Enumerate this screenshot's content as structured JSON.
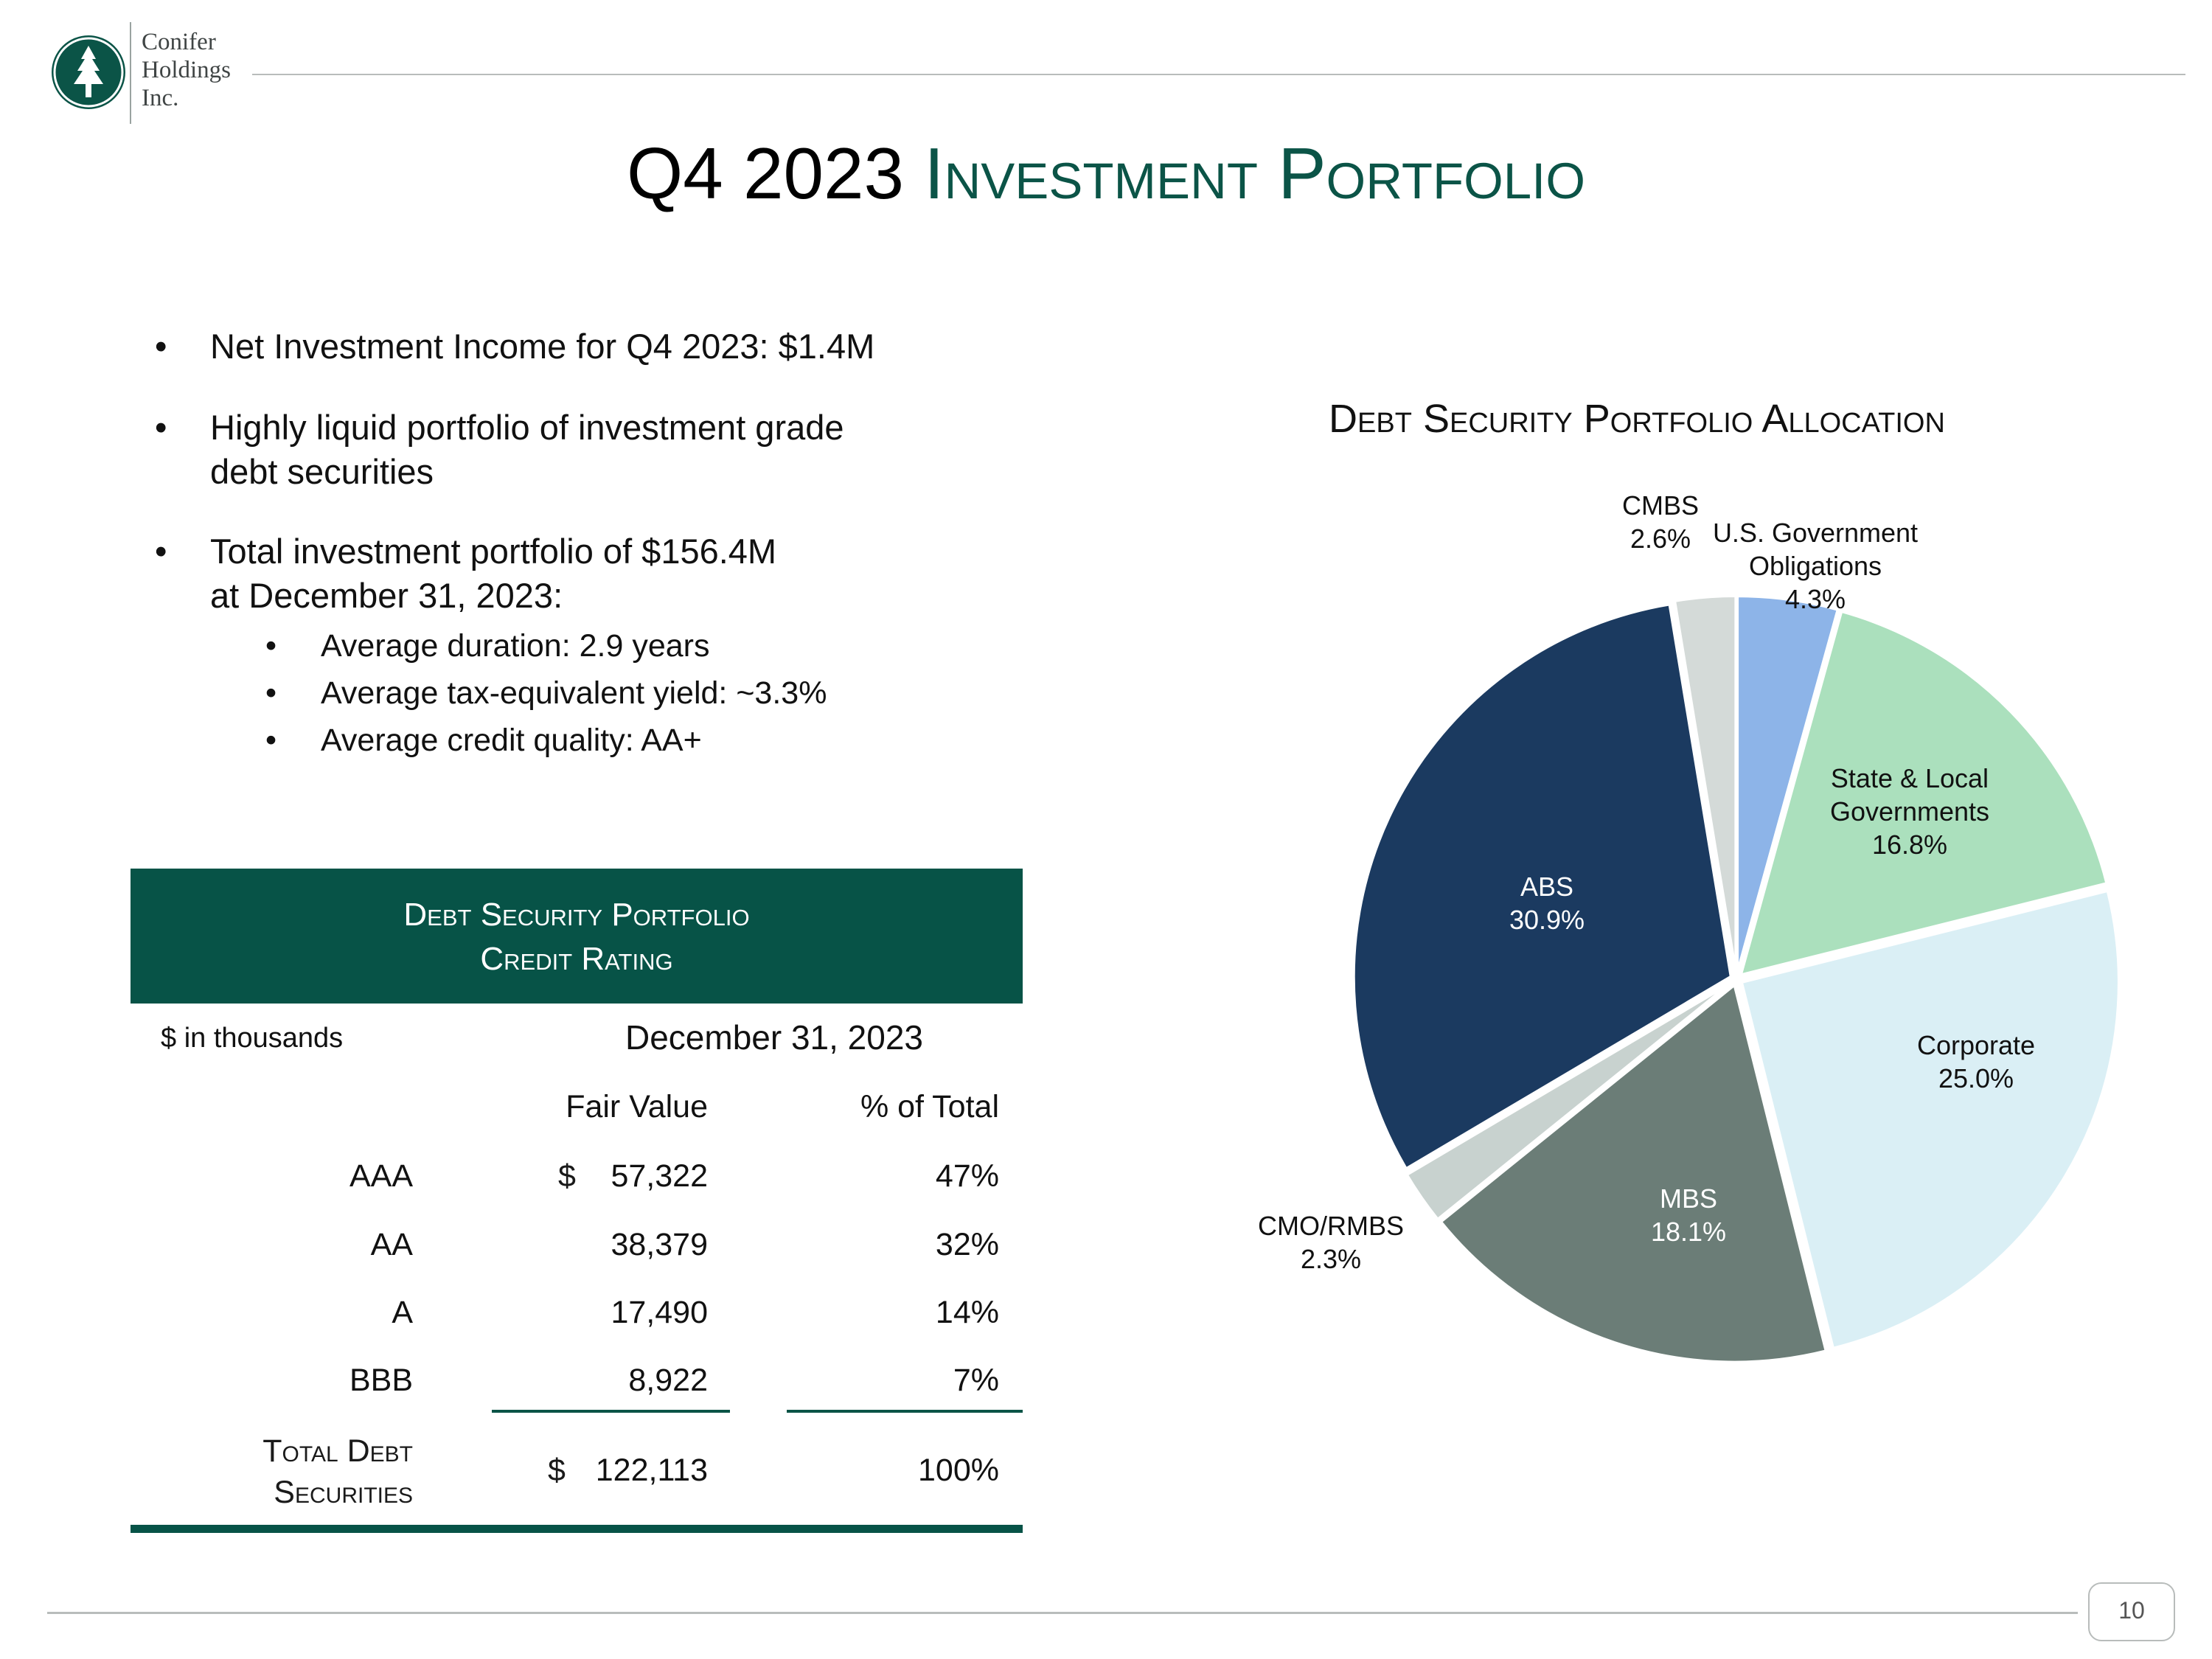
{
  "company": {
    "line1": "Conifer",
    "line2": "Holdings",
    "line3": "Inc."
  },
  "title": {
    "part1": "Q4 2023",
    "part2": "Investment Portfolio"
  },
  "bullets": [
    "Net Investment Income for Q4 2023: $1.4M",
    "Highly liquid portfolio of  investment grade",
    "debt securities",
    "Total investment portfolio of $156.4M",
    "at December 31, 2023:"
  ],
  "sub_bullets": [
    "Average duration: 2.9 years",
    "Average tax-equivalent yield: ~3.3%",
    "Average credit quality: AA+"
  ],
  "table": {
    "header_line1": "Debt Security Portfolio",
    "header_line2": "Credit Rating",
    "units": "$ in thousands",
    "date": "December 31, 2023",
    "col_fair_value": "Fair Value",
    "col_pct": "% of Total",
    "currency": "$",
    "rows": [
      {
        "rating": "AAA",
        "fair_value": "57,322",
        "pct": "47%"
      },
      {
        "rating": "AA",
        "fair_value": "38,379",
        "pct": "32%"
      },
      {
        "rating": "A",
        "fair_value": "17,490",
        "pct": "14%"
      },
      {
        "rating": "BBB",
        "fair_value": "8,922",
        "pct": "7%"
      }
    ],
    "total_label_line1": "Total Debt",
    "total_label_line2": "Securities",
    "total_value": "122,113",
    "total_pct": "100%"
  },
  "chart_data": {
    "type": "pie",
    "title": "Debt Security Portfolio Allocation",
    "slices": [
      {
        "label": "U.S. Government Obligations",
        "label_lines": [
          "U.S. Government",
          "Obligations",
          "4.3%"
        ],
        "value": 4.3,
        "color": "#8db4e8"
      },
      {
        "label": "State & Local Governments",
        "label_lines": [
          "State & Local",
          "Governments",
          "16.8%"
        ],
        "value": 16.8,
        "color": "#abe0bd"
      },
      {
        "label": "Corporate",
        "label_lines": [
          "Corporate",
          "25.0%"
        ],
        "value": 25.0,
        "color": "#daeff5"
      },
      {
        "label": "MBS",
        "label_lines": [
          "MBS",
          "18.1%"
        ],
        "value": 18.1,
        "color": "#6b7d77"
      },
      {
        "label": "CMO/RMBS",
        "label_lines": [
          "CMO/RMBS",
          "2.3%"
        ],
        "value": 2.3,
        "color": "#c8d2cf"
      },
      {
        "label": "ABS",
        "label_lines": [
          "ABS",
          "30.9%"
        ],
        "value": 30.9,
        "color": "#1b3a60"
      },
      {
        "label": "CMBS",
        "label_lines": [
          "CMBS",
          "2.6%"
        ],
        "value": 2.6,
        "color": "#d4dad8"
      }
    ]
  },
  "page_number": "10"
}
